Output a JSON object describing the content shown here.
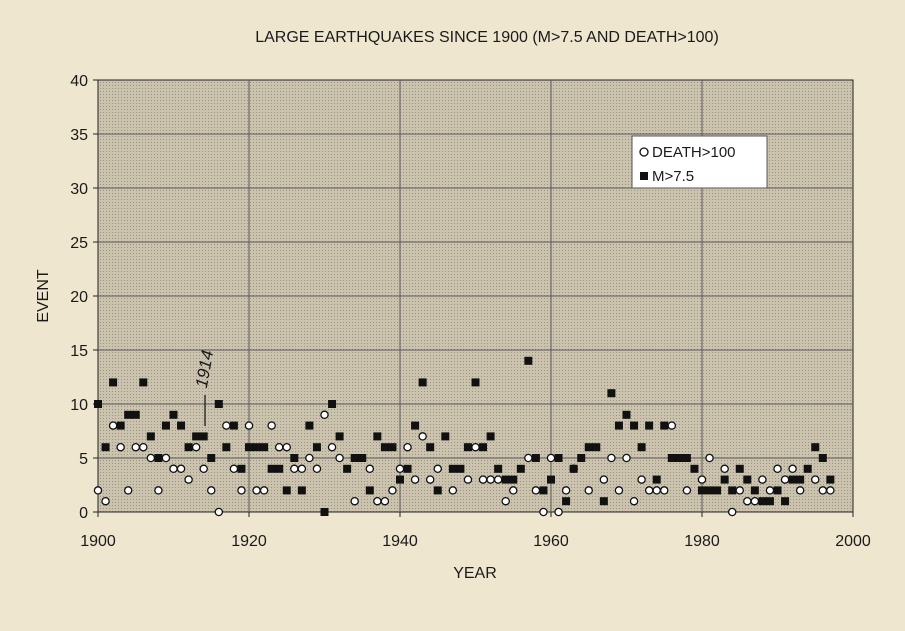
{
  "chart_data": {
    "type": "scatter",
    "title": "LARGE EARTHQUAKES SINCE 1900 (M>7.5 AND DEATH>100)",
    "xlabel": "YEAR",
    "ylabel": "EVENT",
    "xlim": [
      1900,
      2000
    ],
    "ylim": [
      0,
      40
    ],
    "x_ticks": [
      1900,
      1920,
      1940,
      1960,
      1980,
      2000
    ],
    "y_ticks": [
      0,
      5,
      10,
      15,
      20,
      25,
      30,
      35,
      40
    ],
    "grid": true,
    "legend_position": "top-right",
    "colors": {
      "background": "#c9c1ad",
      "grid": "#5a5a5a",
      "marker": "#111111",
      "open_marker_fill": "#ffffff"
    },
    "annotation": {
      "text": "1914",
      "x": 1914
    },
    "series": [
      {
        "name": "DEATH>100",
        "marker": "open-circle",
        "points": [
          [
            1900,
            2
          ],
          [
            1901,
            1
          ],
          [
            1902,
            8
          ],
          [
            1903,
            6
          ],
          [
            1904,
            2
          ],
          [
            1905,
            6
          ],
          [
            1906,
            6
          ],
          [
            1907,
            5
          ],
          [
            1908,
            2
          ],
          [
            1909,
            5
          ],
          [
            1910,
            4
          ],
          [
            1911,
            4
          ],
          [
            1912,
            3
          ],
          [
            1913,
            6
          ],
          [
            1914,
            4
          ],
          [
            1915,
            2
          ],
          [
            1916,
            0
          ],
          [
            1917,
            8
          ],
          [
            1918,
            4
          ],
          [
            1919,
            2
          ],
          [
            1920,
            8
          ],
          [
            1921,
            2
          ],
          [
            1922,
            2
          ],
          [
            1923,
            8
          ],
          [
            1924,
            6
          ],
          [
            1925,
            6
          ],
          [
            1926,
            4
          ],
          [
            1927,
            4
          ],
          [
            1928,
            5
          ],
          [
            1929,
            4
          ],
          [
            1930,
            9
          ],
          [
            1931,
            6
          ],
          [
            1932,
            5
          ],
          [
            1934,
            1
          ],
          [
            1936,
            4
          ],
          [
            1937,
            1
          ],
          [
            1938,
            1
          ],
          [
            1939,
            2
          ],
          [
            1940,
            4
          ],
          [
            1941,
            6
          ],
          [
            1942,
            3
          ],
          [
            1943,
            7
          ],
          [
            1944,
            3
          ],
          [
            1945,
            4
          ],
          [
            1947,
            2
          ],
          [
            1949,
            3
          ],
          [
            1950,
            6
          ],
          [
            1951,
            3
          ],
          [
            1952,
            3
          ],
          [
            1953,
            3
          ],
          [
            1954,
            1
          ],
          [
            1955,
            2
          ],
          [
            1957,
            5
          ],
          [
            1958,
            2
          ],
          [
            1959,
            0
          ],
          [
            1960,
            5
          ],
          [
            1961,
            0
          ],
          [
            1962,
            2
          ],
          [
            1963,
            4
          ],
          [
            1965,
            2
          ],
          [
            1967,
            3
          ],
          [
            1968,
            5
          ],
          [
            1969,
            2
          ],
          [
            1970,
            5
          ],
          [
            1971,
            1
          ],
          [
            1972,
            3
          ],
          [
            1973,
            2
          ],
          [
            1974,
            2
          ],
          [
            1975,
            2
          ],
          [
            1976,
            8
          ],
          [
            1978,
            2
          ],
          [
            1980,
            3
          ],
          [
            1981,
            5
          ],
          [
            1983,
            4
          ],
          [
            1984,
            0
          ],
          [
            1985,
            2
          ],
          [
            1986,
            1
          ],
          [
            1987,
            1
          ],
          [
            1988,
            3
          ],
          [
            1989,
            2
          ],
          [
            1990,
            4
          ],
          [
            1991,
            3
          ],
          [
            1992,
            4
          ],
          [
            1993,
            2
          ],
          [
            1995,
            3
          ],
          [
            1996,
            2
          ],
          [
            1997,
            2
          ]
        ]
      },
      {
        "name": "M>7.5",
        "marker": "filled-square",
        "points": [
          [
            1900,
            10
          ],
          [
            1901,
            6
          ],
          [
            1902,
            12
          ],
          [
            1903,
            8
          ],
          [
            1904,
            9
          ],
          [
            1905,
            9
          ],
          [
            1906,
            12
          ],
          [
            1907,
            7
          ],
          [
            1908,
            5
          ],
          [
            1909,
            8
          ],
          [
            1910,
            9
          ],
          [
            1911,
            8
          ],
          [
            1912,
            6
          ],
          [
            1913,
            7
          ],
          [
            1914,
            7
          ],
          [
            1915,
            5
          ],
          [
            1916,
            10
          ],
          [
            1917,
            6
          ],
          [
            1918,
            8
          ],
          [
            1919,
            4
          ],
          [
            1920,
            6
          ],
          [
            1921,
            6
          ],
          [
            1922,
            6
          ],
          [
            1923,
            4
          ],
          [
            1924,
            4
          ],
          [
            1925,
            2
          ],
          [
            1926,
            5
          ],
          [
            1927,
            2
          ],
          [
            1928,
            8
          ],
          [
            1929,
            6
          ],
          [
            1930,
            0
          ],
          [
            1931,
            10
          ],
          [
            1932,
            7
          ],
          [
            1933,
            4
          ],
          [
            1934,
            5
          ],
          [
            1935,
            5
          ],
          [
            1936,
            2
          ],
          [
            1937,
            7
          ],
          [
            1938,
            6
          ],
          [
            1939,
            6
          ],
          [
            1940,
            3
          ],
          [
            1941,
            4
          ],
          [
            1942,
            8
          ],
          [
            1943,
            12
          ],
          [
            1944,
            6
          ],
          [
            1945,
            2
          ],
          [
            1946,
            7
          ],
          [
            1947,
            4
          ],
          [
            1948,
            4
          ],
          [
            1949,
            6
          ],
          [
            1950,
            12
          ],
          [
            1951,
            6
          ],
          [
            1952,
            7
          ],
          [
            1953,
            4
          ],
          [
            1954,
            3
          ],
          [
            1955,
            3
          ],
          [
            1956,
            4
          ],
          [
            1957,
            14
          ],
          [
            1958,
            5
          ],
          [
            1959,
            2
          ],
          [
            1960,
            3
          ],
          [
            1961,
            5
          ],
          [
            1962,
            1
          ],
          [
            1963,
            4
          ],
          [
            1964,
            5
          ],
          [
            1965,
            6
          ],
          [
            1966,
            6
          ],
          [
            1967,
            1
          ],
          [
            1968,
            11
          ],
          [
            1969,
            8
          ],
          [
            1970,
            9
          ],
          [
            1971,
            8
          ],
          [
            1972,
            6
          ],
          [
            1973,
            8
          ],
          [
            1974,
            3
          ],
          [
            1975,
            8
          ],
          [
            1976,
            5
          ],
          [
            1977,
            5
          ],
          [
            1978,
            5
          ],
          [
            1979,
            4
          ],
          [
            1980,
            2
          ],
          [
            1981,
            2
          ],
          [
            1982,
            2
          ],
          [
            1983,
            3
          ],
          [
            1984,
            2
          ],
          [
            1985,
            4
          ],
          [
            1986,
            3
          ],
          [
            1987,
            2
          ],
          [
            1988,
            1
          ],
          [
            1989,
            1
          ],
          [
            1990,
            2
          ],
          [
            1991,
            1
          ],
          [
            1992,
            3
          ],
          [
            1993,
            3
          ],
          [
            1994,
            4
          ],
          [
            1995,
            6
          ],
          [
            1996,
            5
          ],
          [
            1997,
            3
          ]
        ]
      }
    ]
  }
}
